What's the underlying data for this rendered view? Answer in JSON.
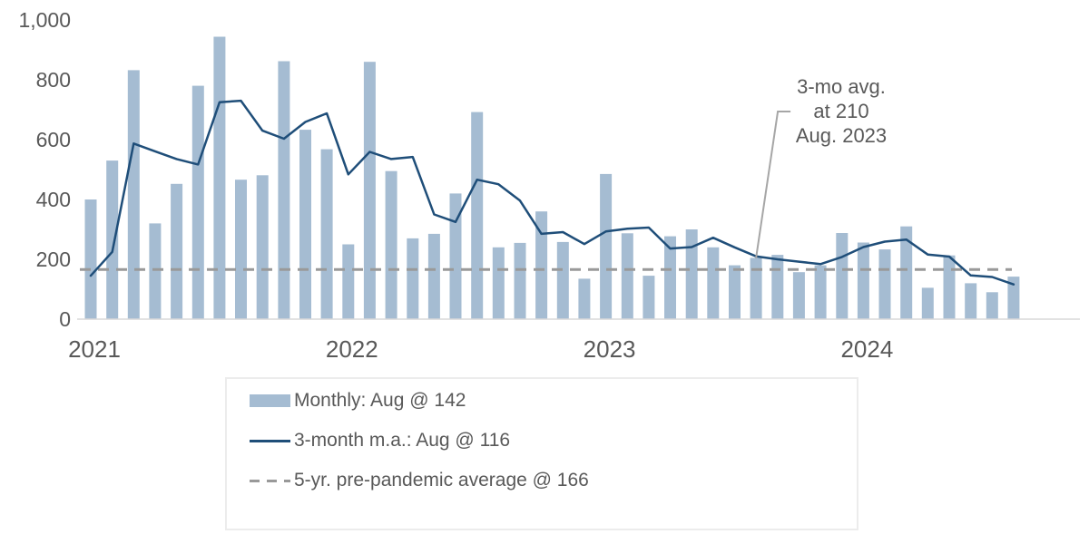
{
  "chart_data": {
    "type": "bar+line",
    "title": "",
    "xlabel": "",
    "ylabel": "",
    "x": {
      "months_start": "2021-01",
      "months_end": "2024-08",
      "month_count": 44,
      "year_tick_labels": [
        "2021",
        "2022",
        "2023",
        "2024"
      ],
      "year_tick_indices": [
        0,
        12,
        24,
        36
      ]
    },
    "y_axis": {
      "range": [
        0,
        1000
      ],
      "ticks": [
        {
          "label": "0",
          "value": 0
        },
        {
          "label": "200",
          "value": 200
        },
        {
          "label": "400",
          "value": 400
        },
        {
          "label": "600",
          "value": 600
        },
        {
          "label": "800",
          "value": 800
        },
        {
          "label": "1,000",
          "value": 1000
        }
      ]
    },
    "grid": "off",
    "legend_position": "bottom-left",
    "series": [
      {
        "name": "Monthly",
        "type": "bar",
        "color": "#a5bcd2",
        "values": [
          400,
          530,
          832,
          320,
          452,
          780,
          944,
          466,
          481,
          862,
          633,
          568,
          250,
          860,
          495,
          270,
          285,
          420,
          692,
          240,
          255,
          360,
          258,
          135,
          485,
          287,
          145,
          277,
          300,
          240,
          180,
          205,
          215,
          157,
          180,
          288,
          256,
          233,
          310,
          105,
          213,
          120,
          90,
          142
        ]
      },
      {
        "name": "3-month m.a.",
        "type": "line",
        "color": "#1f4e79",
        "values": [
          145,
          225,
          587,
          561,
          535,
          517,
          725,
          730,
          630,
          603,
          659,
          688,
          484,
          559,
          535,
          542,
          350,
          325,
          466,
          451,
          396,
          285,
          291,
          251,
          293,
          302,
          306,
          236,
          241,
          272,
          240,
          210,
          200,
          192,
          184,
          208,
          241,
          259,
          266,
          216,
          209,
          146,
          141,
          116
        ]
      },
      {
        "name": "5-yr. pre-pandemic average",
        "type": "dashed-constant",
        "color": "#999999",
        "value": 166
      }
    ]
  },
  "legend": {
    "items": [
      {
        "label": "Monthly: Aug @ 142"
      },
      {
        "label": "3-month m.a.: Aug @ 116"
      },
      {
        "label": "5-yr. pre-pandemic average @ 166"
      }
    ]
  },
  "annotation": {
    "lines": [
      "3-mo avg.",
      "at 210",
      "Aug. 2023"
    ],
    "anchor_month_index": 31,
    "anchor_value": 210
  },
  "colors": {
    "bar": "#a5bcd2",
    "ma_line": "#1f4e79",
    "avg_dash": "#999999",
    "axis_line": "#d9d9d9",
    "text": "#595959",
    "leader_line": "#a6a6a6",
    "legend_border": "#ececec"
  }
}
